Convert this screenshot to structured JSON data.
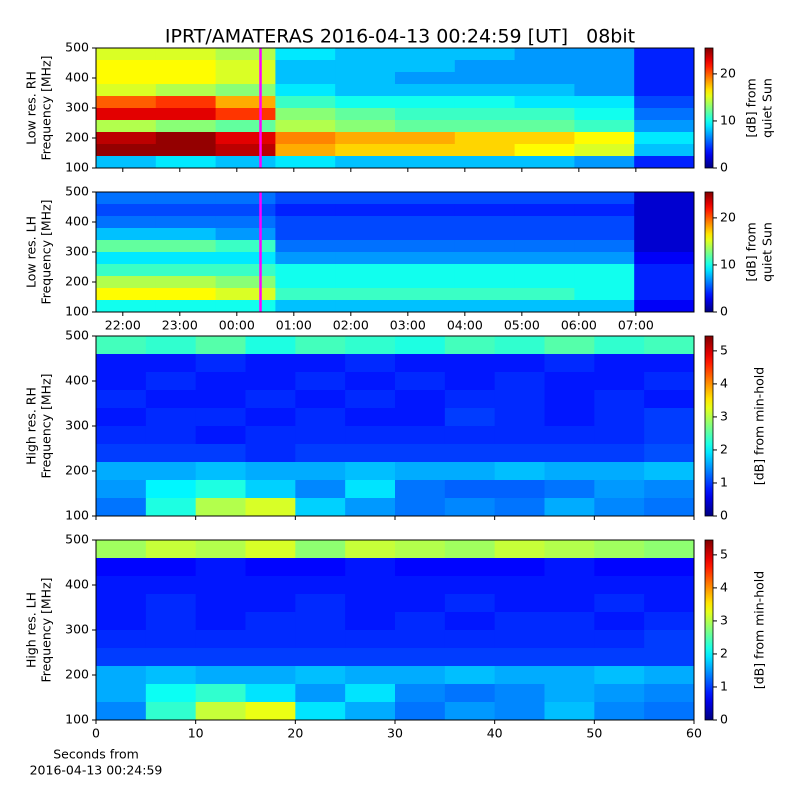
{
  "title": "IPRT/AMATERAS 2016-04-13 00:24:59 [UT]   08bit",
  "chart_data": [
    {
      "type": "heatmap",
      "ylabel": [
        "Low res. RH",
        "Frequency [MHz]"
      ],
      "colorbar_label": [
        "[dB] from",
        "quiet Sun"
      ],
      "colormap": "jet",
      "clim": [
        0,
        25.5
      ],
      "cticks": [
        0,
        10,
        20
      ],
      "xlim": [
        21.53,
        32.02
      ],
      "xticks": [
        {
          "value": 22,
          "label": "22:00"
        },
        {
          "value": 23,
          "label": "23:00"
        },
        {
          "value": 24,
          "label": "00:00"
        },
        {
          "value": 25,
          "label": "01:00"
        },
        {
          "value": 26,
          "label": "02:00"
        },
        {
          "value": 27,
          "label": "03:00"
        },
        {
          "value": 28,
          "label": "04:00"
        },
        {
          "value": 29,
          "label": "05:00"
        },
        {
          "value": 30,
          "label": "06:00"
        },
        {
          "value": 31,
          "label": "07:00"
        }
      ],
      "show_xticklabels": false,
      "ylim": [
        100,
        500
      ],
      "yticks": [
        100,
        200,
        300,
        400,
        500
      ],
      "marker_x": 24.416,
      "marker_color": "#ff00ff",
      "z": [
        [
          15,
          15,
          14,
          9,
          8,
          8,
          8,
          7,
          7,
          4
        ],
        [
          16,
          16,
          15,
          8,
          8,
          8,
          7,
          7,
          7,
          4
        ],
        [
          16,
          16,
          15,
          8,
          8,
          7,
          7,
          7,
          7,
          4
        ],
        [
          15,
          14,
          13,
          9,
          8,
          8,
          8,
          8,
          7,
          4
        ],
        [
          20,
          21,
          18,
          11,
          10,
          10,
          10,
          9,
          9,
          5
        ],
        [
          23,
          23,
          21,
          13,
          12,
          11,
          11,
          11,
          10,
          6
        ],
        [
          14,
          13,
          12,
          14,
          13,
          12,
          12,
          12,
          11,
          7
        ],
        [
          24,
          25,
          23,
          19,
          18,
          18,
          17,
          17,
          16,
          9
        ],
        [
          25,
          25,
          24,
          18,
          17,
          17,
          17,
          16,
          15,
          8
        ],
        [
          8,
          9,
          8,
          9,
          8,
          8,
          8,
          8,
          7,
          4
        ]
      ]
    },
    {
      "type": "heatmap",
      "ylabel": [
        "Low res. LH",
        "Frequency [MHz]"
      ],
      "colorbar_label": [
        "[dB] from",
        "quiet Sun"
      ],
      "colormap": "jet",
      "clim": [
        0,
        25.5
      ],
      "cticks": [
        0,
        10,
        20
      ],
      "xlim": [
        21.53,
        32.02
      ],
      "xticks": [
        {
          "value": 22,
          "label": "22:00"
        },
        {
          "value": 23,
          "label": "23:00"
        },
        {
          "value": 24,
          "label": "00:00"
        },
        {
          "value": 25,
          "label": "01:00"
        },
        {
          "value": 26,
          "label": "02:00"
        },
        {
          "value": 27,
          "label": "03:00"
        },
        {
          "value": 28,
          "label": "04:00"
        },
        {
          "value": 29,
          "label": "05:00"
        },
        {
          "value": 30,
          "label": "06:00"
        },
        {
          "value": 31,
          "label": "07:00"
        }
      ],
      "show_xticklabels": true,
      "ylim": [
        100,
        500
      ],
      "yticks": [
        100,
        200,
        300,
        400,
        500
      ],
      "marker_x": 24.416,
      "marker_color": "#ff00ff",
      "z": [
        [
          6,
          6,
          6,
          5,
          5,
          5,
          5,
          5,
          5,
          2
        ],
        [
          5,
          5,
          5,
          4,
          4,
          4,
          4,
          4,
          4,
          2
        ],
        [
          6,
          6,
          6,
          5,
          5,
          5,
          5,
          5,
          5,
          2
        ],
        [
          8,
          8,
          7,
          5,
          5,
          5,
          5,
          5,
          5,
          2
        ],
        [
          12,
          12,
          11,
          6,
          6,
          6,
          6,
          6,
          6,
          2
        ],
        [
          9,
          9,
          9,
          7,
          7,
          7,
          7,
          7,
          7,
          3
        ],
        [
          11,
          11,
          11,
          10,
          10,
          10,
          10,
          10,
          10,
          4
        ],
        [
          14,
          14,
          13,
          10,
          10,
          10,
          10,
          10,
          10,
          4
        ],
        [
          16,
          16,
          15,
          11,
          11,
          11,
          11,
          11,
          10,
          4
        ],
        [
          10,
          10,
          10,
          8,
          8,
          8,
          8,
          8,
          8,
          3
        ]
      ]
    },
    {
      "type": "heatmap",
      "ylabel": [
        "High res. RH",
        "Frequency [MHz]"
      ],
      "colorbar_label": [
        "[dB] from min-hold"
      ],
      "colormap": "jet",
      "clim": [
        0,
        5.45
      ],
      "cticks": [
        0,
        1,
        2,
        3,
        4,
        5
      ],
      "xlim": [
        0,
        60
      ],
      "xticks": [
        0,
        10,
        20,
        30,
        40,
        50,
        60
      ],
      "show_xticklabels": false,
      "ylim": [
        100,
        500
      ],
      "yticks": [
        100,
        200,
        300,
        400,
        500
      ],
      "z": [
        [
          2.4,
          2.3,
          2.5,
          2.2,
          2.4,
          2.3,
          2.2,
          2.4,
          2.3,
          2.5,
          2.3,
          2.4
        ],
        [
          0.8,
          0.8,
          0.9,
          0.8,
          0.8,
          0.9,
          0.8,
          0.8,
          0.8,
          0.9,
          0.8,
          0.8
        ],
        [
          0.8,
          0.9,
          0.8,
          0.8,
          0.9,
          0.8,
          0.9,
          0.8,
          0.9,
          0.8,
          0.8,
          0.9
        ],
        [
          0.9,
          0.8,
          0.8,
          0.9,
          0.8,
          0.9,
          0.8,
          0.9,
          0.9,
          0.8,
          0.9,
          0.8
        ],
        [
          0.8,
          0.9,
          0.9,
          0.8,
          0.9,
          0.8,
          0.8,
          1.0,
          0.9,
          0.8,
          0.9,
          1.0
        ],
        [
          0.9,
          0.9,
          0.8,
          0.9,
          0.9,
          0.9,
          0.9,
          0.9,
          0.9,
          0.9,
          0.9,
          1.0
        ],
        [
          1.0,
          1.0,
          1.0,
          0.9,
          1.0,
          1.0,
          1.0,
          1.0,
          1.0,
          1.0,
          1.0,
          1.1
        ],
        [
          1.6,
          1.6,
          1.7,
          1.6,
          1.6,
          1.7,
          1.6,
          1.6,
          1.7,
          1.6,
          1.6,
          1.7
        ],
        [
          1.5,
          2.0,
          2.2,
          1.8,
          1.4,
          1.9,
          1.3,
          1.2,
          1.2,
          1.3,
          1.5,
          1.4
        ],
        [
          1.3,
          2.2,
          3.0,
          3.2,
          1.8,
          1.5,
          1.3,
          1.4,
          1.3,
          1.6,
          1.4,
          1.3
        ]
      ]
    },
    {
      "type": "heatmap",
      "ylabel": [
        "High res. LH",
        "Frequency [MHz]"
      ],
      "colorbar_label": [
        "[dB] from min-hold"
      ],
      "colormap": "jet",
      "clim": [
        0,
        5.45
      ],
      "cticks": [
        0,
        1,
        2,
        3,
        4,
        5
      ],
      "xlim": [
        0,
        60
      ],
      "xticks": [
        0,
        10,
        20,
        30,
        40,
        50,
        60
      ],
      "show_xticklabels": true,
      "xlabel": [
        "Seconds from",
        "2016-04-13 00:24:59"
      ],
      "ylim": [
        100,
        500
      ],
      "yticks": [
        100,
        200,
        300,
        400,
        500
      ],
      "z": [
        [
          2.9,
          3.1,
          3.0,
          3.2,
          2.8,
          3.1,
          3.0,
          2.9,
          3.1,
          3.0,
          2.9,
          2.8
        ],
        [
          0.7,
          0.7,
          0.8,
          0.7,
          0.7,
          0.8,
          0.7,
          0.7,
          0.7,
          0.8,
          0.7,
          0.7
        ],
        [
          0.8,
          0.8,
          0.8,
          0.8,
          0.8,
          0.8,
          0.8,
          0.8,
          0.8,
          0.8,
          0.8,
          0.8
        ],
        [
          0.8,
          0.9,
          0.8,
          0.8,
          0.9,
          0.8,
          0.8,
          0.9,
          0.8,
          0.8,
          0.9,
          0.8
        ],
        [
          0.8,
          0.9,
          0.8,
          0.9,
          0.9,
          0.8,
          0.9,
          0.8,
          0.9,
          0.9,
          0.8,
          0.9
        ],
        [
          0.9,
          0.9,
          0.9,
          0.9,
          0.9,
          0.9,
          0.9,
          0.9,
          0.9,
          0.9,
          0.9,
          1.0
        ],
        [
          1.0,
          1.0,
          1.0,
          1.0,
          1.0,
          1.0,
          1.0,
          1.0,
          1.0,
          1.0,
          1.0,
          1.0
        ],
        [
          1.6,
          1.7,
          1.6,
          1.6,
          1.7,
          1.6,
          1.6,
          1.7,
          1.6,
          1.6,
          1.7,
          1.6
        ],
        [
          1.6,
          2.1,
          2.3,
          1.9,
          1.5,
          1.9,
          1.4,
          1.3,
          1.4,
          1.6,
          1.5,
          1.4
        ],
        [
          1.4,
          2.3,
          3.1,
          3.3,
          1.9,
          1.6,
          1.3,
          1.5,
          1.4,
          1.7,
          1.4,
          1.3
        ]
      ]
    }
  ]
}
